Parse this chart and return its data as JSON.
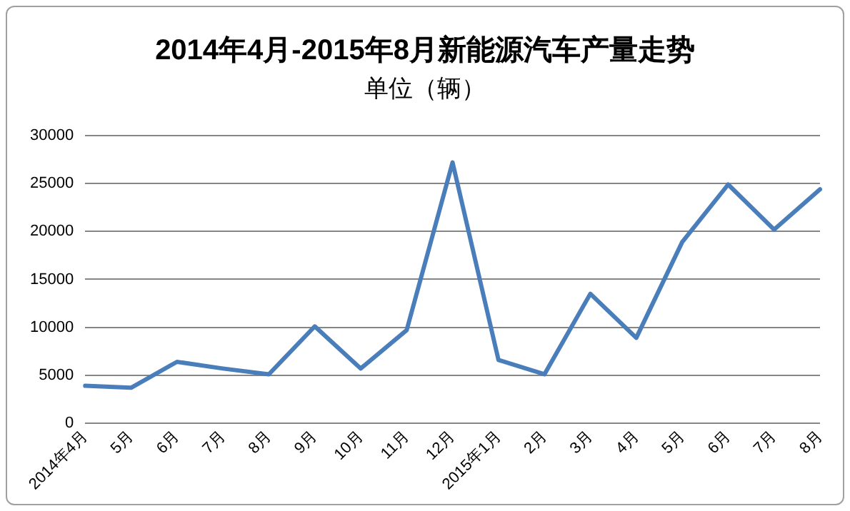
{
  "chart_data": {
    "type": "line",
    "title": "2014年4月-2015年8月新能源汽车产量走势",
    "subtitle": "单位（辆）",
    "categories": [
      "2014年4月",
      "5月",
      "6月",
      "7月",
      "8月",
      "9月",
      "10月",
      "11月",
      "12月",
      "2015年1月",
      "2月",
      "3月",
      "4月",
      "5月",
      "6月",
      "7月",
      "8月"
    ],
    "series": [
      {
        "color": "#4a7ebb",
        "values": [
          3900,
          3700,
          6400,
          5700,
          5100,
          10100,
          5700,
          9700,
          27200,
          6600,
          5100,
          13500,
          8900,
          18900,
          24900,
          20200,
          24400
        ]
      }
    ],
    "ylim": [
      0,
      30000
    ],
    "yticks": [
      0,
      5000,
      10000,
      15000,
      20000,
      25000,
      30000
    ],
    "grid": "y",
    "legend": false,
    "marker": "none",
    "line_style": "solid"
  }
}
